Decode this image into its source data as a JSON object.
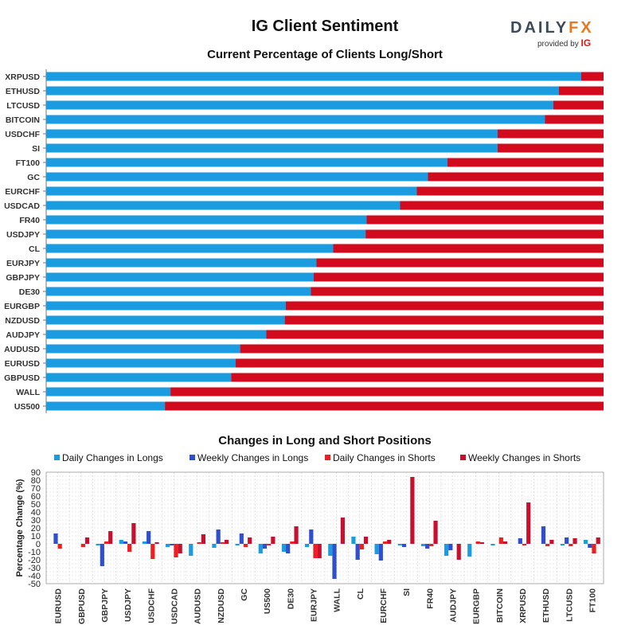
{
  "title": "IG Client Sentiment",
  "logo": {
    "brand_a": "DAILY",
    "brand_b": "FX",
    "provided_by": "provided by",
    "ig": "IG"
  },
  "colors": {
    "long": "#1b9be0",
    "short": "#d20a1e",
    "daily_long": "#1b9be0",
    "weekly_long": "#2f4fcf",
    "daily_short": "#f01e1e",
    "weekly_short": "#c8102e"
  },
  "chart_data": [
    {
      "type": "bar",
      "orientation": "horizontal",
      "stacked": true,
      "title": "Current Percentage of Clients Long/Short",
      "categories": [
        "XRPUSD",
        "ETHUSD",
        "LTCUSD",
        "BITCOIN",
        "USDCHF",
        "SI",
        "FT100",
        "GC",
        "EURCHF",
        "USDCAD",
        "FR40",
        "USDJPY",
        "CL",
        "EURJPY",
        "GBPJPY",
        "DE30",
        "EURGBP",
        "NZDUSD",
        "AUDJPY",
        "AUDUSD",
        "EURUSD",
        "GBPUSD",
        "WALL",
        "US500"
      ],
      "series": [
        {
          "name": "Long",
          "values": [
            96,
            92,
            91,
            89.5,
            81,
            81,
            72,
            68.5,
            66.5,
            63.5,
            57.5,
            57.3,
            51.5,
            48.5,
            48,
            47.5,
            43,
            42.8,
            39.5,
            34.8,
            34,
            33.2,
            22.3,
            21.3
          ]
        },
        {
          "name": "Short",
          "values": [
            4,
            8,
            9,
            10.5,
            19,
            19,
            28,
            31.5,
            33.5,
            36.5,
            42.5,
            42.7,
            48.5,
            51.5,
            52,
            52.5,
            57,
            57.2,
            60.5,
            65.2,
            66,
            66.8,
            77.7,
            78.7
          ]
        }
      ],
      "xlim": [
        0,
        100
      ]
    },
    {
      "type": "bar",
      "title": "Changes in Long and Short Positions",
      "ylabel": "Percentage Change (%)",
      "ylim": [
        -50,
        90
      ],
      "yticks": [
        90,
        80,
        70,
        60,
        50,
        40,
        30,
        20,
        10,
        0,
        -10,
        -20,
        -30,
        -40,
        -50
      ],
      "categories": [
        "EURUSD",
        "GBPUSD",
        "GBPJPY",
        "USDJPY",
        "USDCHF",
        "USDCAD",
        "AUDUSD",
        "NZDUSD",
        "GC",
        "US500",
        "DE30",
        "EURJPY",
        "WALL",
        "CL",
        "EURCHF",
        "SI",
        "FR40",
        "AUDJPY",
        "EURGBP",
        "BITCOIN",
        "XRPUSD",
        "ETHUSD",
        "LTCUSD",
        "FT100"
      ],
      "series": [
        {
          "name": "Daily Changes in Longs",
          "values": [
            0,
            0,
            -2,
            5,
            3,
            -4,
            -15,
            -5,
            -2,
            -12,
            -10,
            -4,
            -15,
            9,
            -13,
            -2,
            -3,
            -15,
            -16,
            -2,
            0,
            0,
            -2,
            5
          ]
        },
        {
          "name": "Weekly Changes in Longs",
          "values": [
            13,
            0,
            -28,
            3,
            16,
            -2,
            0,
            18,
            13,
            -6,
            -12,
            18,
            -44,
            -20,
            -21,
            -4,
            -6,
            -8,
            0,
            0,
            7,
            22,
            8,
            -5
          ]
        },
        {
          "name": "Daily Changes in Shorts",
          "values": [
            -6,
            -4,
            3,
            -10,
            -19,
            -17,
            2,
            2,
            -4,
            -2,
            3,
            -18,
            0,
            -7,
            3,
            0,
            -3,
            0,
            3,
            8,
            -2,
            -3,
            -3,
            -12
          ]
        },
        {
          "name": "Weekly Changes in Shorts",
          "values": [
            0,
            8,
            16,
            26,
            2,
            -12,
            12,
            5,
            8,
            9,
            22,
            -18,
            33,
            9,
            5,
            84,
            29,
            -20,
            2,
            3,
            52,
            5,
            7,
            8
          ]
        }
      ]
    }
  ]
}
